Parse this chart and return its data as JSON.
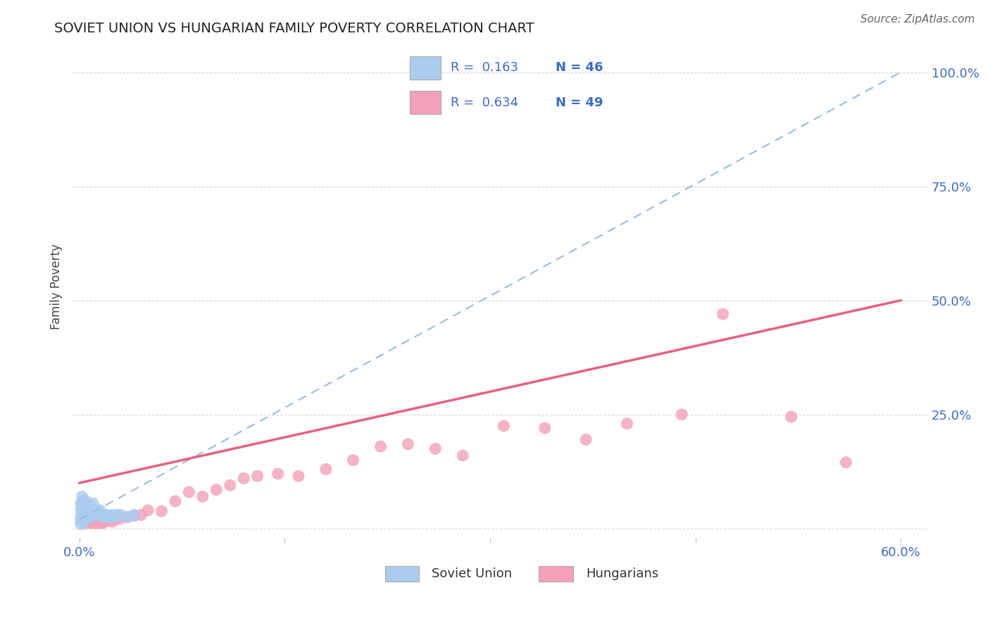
{
  "title": "SOVIET UNION VS HUNGARIAN FAMILY POVERTY CORRELATION CHART",
  "source": "Source: ZipAtlas.com",
  "ylabel_label": "Family Poverty",
  "xlim": [
    -0.005,
    0.62
  ],
  "ylim": [
    -0.02,
    1.08
  ],
  "xticks": [
    0.0,
    0.15,
    0.3,
    0.45,
    0.6
  ],
  "xtick_labels": [
    "0.0%",
    "",
    "",
    "",
    "60.0%"
  ],
  "ytick_positions": [
    0.0,
    0.25,
    0.5,
    0.75,
    1.0
  ],
  "ytick_labels": [
    "",
    "25.0%",
    "50.0%",
    "75.0%",
    "100.0%"
  ],
  "soviet_R": 0.163,
  "soviet_N": 46,
  "hungarian_R": 0.634,
  "hungarian_N": 49,
  "soviet_color": "#aaccee",
  "hungarian_color": "#f4a0b8",
  "soviet_line_color": "#99bbdd",
  "hungarian_line_color": "#e8607a",
  "background_color": "#ffffff",
  "grid_color": "#cccccc",
  "soviet_line_x0": 0.0,
  "soviet_line_y0": 0.02,
  "soviet_line_x1": 0.6,
  "soviet_line_y1": 1.0,
  "hungarian_line_x0": 0.0,
  "hungarian_line_y0": 0.1,
  "hungarian_line_x1": 0.6,
  "hungarian_line_y1": 0.5,
  "soviet_x": [
    0.001,
    0.001,
    0.001,
    0.001,
    0.001,
    0.002,
    0.002,
    0.002,
    0.002,
    0.002,
    0.003,
    0.003,
    0.003,
    0.003,
    0.004,
    0.004,
    0.004,
    0.005,
    0.005,
    0.005,
    0.006,
    0.006,
    0.007,
    0.007,
    0.008,
    0.008,
    0.009,
    0.01,
    0.01,
    0.011,
    0.012,
    0.013,
    0.014,
    0.015,
    0.016,
    0.017,
    0.018,
    0.019,
    0.02,
    0.022,
    0.024,
    0.026,
    0.028,
    0.03,
    0.035,
    0.04
  ],
  "soviet_y": [
    0.055,
    0.04,
    0.025,
    0.018,
    0.01,
    0.07,
    0.055,
    0.04,
    0.025,
    0.015,
    0.06,
    0.045,
    0.03,
    0.015,
    0.055,
    0.04,
    0.02,
    0.06,
    0.04,
    0.02,
    0.05,
    0.03,
    0.045,
    0.025,
    0.05,
    0.03,
    0.04,
    0.055,
    0.03,
    0.04,
    0.04,
    0.035,
    0.03,
    0.04,
    0.03,
    0.025,
    0.03,
    0.025,
    0.03,
    0.025,
    0.03,
    0.025,
    0.03,
    0.03,
    0.025,
    0.03
  ],
  "hungarian_x": [
    0.003,
    0.004,
    0.005,
    0.006,
    0.007,
    0.008,
    0.009,
    0.01,
    0.011,
    0.012,
    0.013,
    0.014,
    0.015,
    0.016,
    0.017,
    0.018,
    0.02,
    0.022,
    0.024,
    0.026,
    0.03,
    0.035,
    0.04,
    0.045,
    0.05,
    0.06,
    0.07,
    0.08,
    0.09,
    0.1,
    0.11,
    0.12,
    0.13,
    0.145,
    0.16,
    0.18,
    0.2,
    0.22,
    0.24,
    0.26,
    0.28,
    0.31,
    0.34,
    0.37,
    0.4,
    0.44,
    0.47,
    0.52,
    0.56
  ],
  "hungarian_y": [
    0.015,
    0.012,
    0.02,
    0.015,
    0.018,
    0.012,
    0.015,
    0.018,
    0.012,
    0.02,
    0.018,
    0.012,
    0.015,
    0.018,
    0.012,
    0.015,
    0.02,
    0.018,
    0.015,
    0.02,
    0.022,
    0.025,
    0.028,
    0.03,
    0.04,
    0.038,
    0.06,
    0.08,
    0.07,
    0.085,
    0.095,
    0.11,
    0.115,
    0.12,
    0.115,
    0.13,
    0.15,
    0.18,
    0.185,
    0.175,
    0.16,
    0.225,
    0.22,
    0.195,
    0.23,
    0.25,
    0.47,
    0.245,
    0.145
  ]
}
